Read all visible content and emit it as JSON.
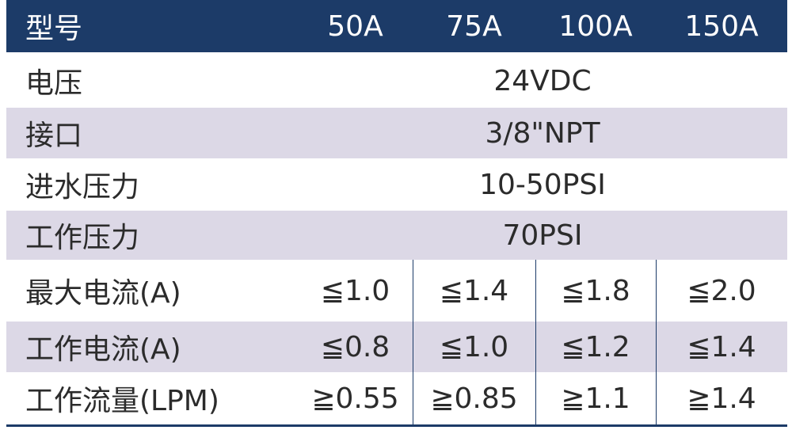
{
  "header": {
    "label": "型号",
    "models": [
      "50A",
      "75A",
      "100A",
      "150A"
    ]
  },
  "spec_rows": [
    {
      "label": "电压",
      "value": "24VDC"
    },
    {
      "label": "接口",
      "value": "3/8\"NPT"
    },
    {
      "label": "进水压力",
      "value": "10-50PSI"
    },
    {
      "label": "工作压力",
      "value": "70PSI"
    }
  ],
  "model_rows": [
    {
      "label": "最大电流(A)",
      "values": [
        "≦1.0",
        "≦1.4",
        "≦1.8",
        "≦2.0"
      ]
    },
    {
      "label": "工作电流(A)",
      "values": [
        "≦0.8",
        "≦1.0",
        "≦1.2",
        "≦1.4"
      ]
    },
    {
      "label": "工作流量(LPM)",
      "values": [
        "≧0.55",
        "≧0.85",
        "≧1.1",
        "≧1.4"
      ]
    }
  ],
  "colors": {
    "header_bg": "#1c3b68",
    "row_shade": "#dcd8e6",
    "text": "#2b2b2b"
  }
}
